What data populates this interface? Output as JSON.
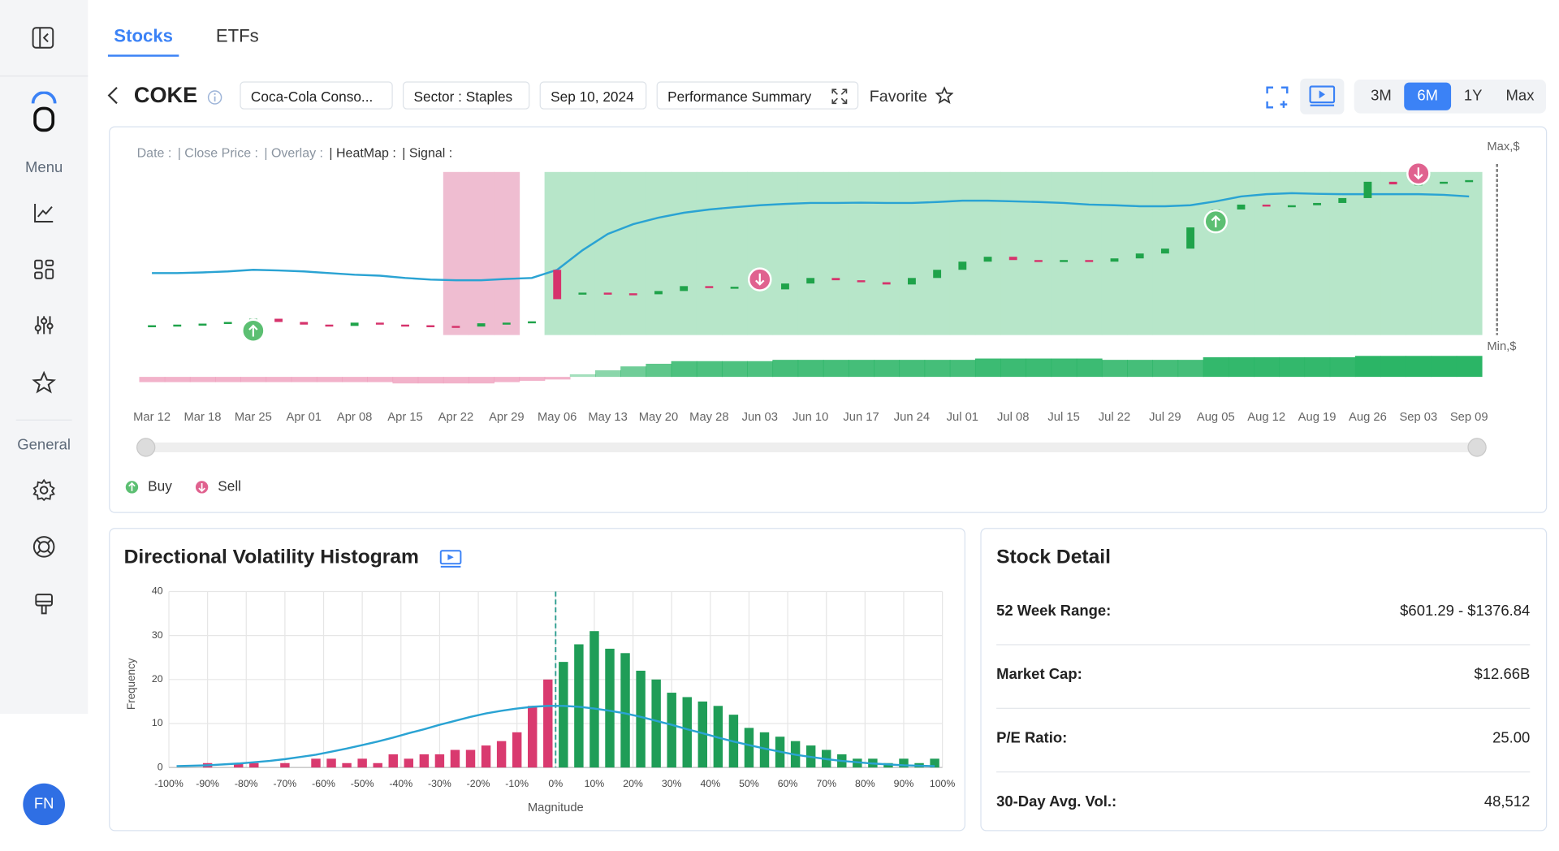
{
  "tabs": {
    "items": [
      "Stocks",
      "ETFs"
    ],
    "active": "Stocks"
  },
  "sidebar": {
    "sections": [
      "Menu",
      "General"
    ],
    "avatar": "FN"
  },
  "header": {
    "ticker": "COKE",
    "chips": [
      "Coca-Cola Conso...",
      "Sector : Staples",
      "Sep 10, 2024",
      "Performance Summary"
    ],
    "favorite": "Favorite",
    "ranges": [
      "3M",
      "6M",
      "1Y",
      "Max"
    ],
    "active_range": "6M"
  },
  "chart_data": [
    {
      "type": "candlestick",
      "info_labels": [
        "Date :",
        "| Close Price :",
        "| Overlay :",
        "| HeatMap :",
        "| Signal :"
      ],
      "categories": [
        "Mar 12",
        null,
        "Mar 18",
        null,
        "Mar 25",
        null,
        "Apr 01",
        null,
        "Apr 08",
        null,
        "Apr 15",
        null,
        "Apr 22",
        null,
        "Apr 29",
        null,
        "May 06",
        null,
        "May 13",
        null,
        "May 20",
        null,
        "May 28",
        null,
        "Jun 03",
        null,
        "Jun 10",
        null,
        "Jun 17",
        null,
        "Jun 24",
        null,
        "Jul 01",
        null,
        "Jul 08",
        null,
        "Jul 15",
        null,
        "Jul 22",
        null,
        "Jul 29",
        null,
        "Aug 05",
        null,
        "Aug 12",
        null,
        "Aug 19",
        null,
        "Aug 26",
        null,
        "Sep 03",
        null,
        "Sep 09"
      ],
      "open": [
        828,
        830,
        832,
        835,
        840,
        850,
        840,
        832,
        828,
        838,
        832,
        830,
        828,
        826,
        836,
        838,
        1000,
        925,
        930,
        928,
        925,
        935,
        950,
        945,
        948,
        940,
        958,
        975,
        968,
        962,
        955,
        975,
        1000,
        1025,
        1040,
        1030,
        1028,
        1030,
        1025,
        1035,
        1050,
        1065,
        1130,
        1185,
        1200,
        1195,
        1198,
        1205,
        1220,
        1270,
        1262,
        1265,
        1270
      ],
      "close": [
        830,
        832,
        835,
        840,
        850,
        840,
        832,
        828,
        838,
        832,
        830,
        828,
        826,
        836,
        838,
        842,
        910,
        930,
        928,
        925,
        935,
        950,
        945,
        948,
        940,
        958,
        975,
        968,
        962,
        955,
        975,
        1000,
        1025,
        1040,
        1030,
        1028,
        1030,
        1025,
        1035,
        1050,
        1065,
        1130,
        1185,
        1200,
        1195,
        1198,
        1205,
        1220,
        1270,
        1262,
        1265,
        1270,
        1275
      ],
      "up_color": "#1fa34a",
      "down_color": "#d6336c",
      "overlay": {
        "color": "#2aa3d3",
        "values": [
          990,
          990,
          992,
          995,
          1000,
          998,
          995,
          990,
          985,
          982,
          975,
          970,
          968,
          968,
          972,
          975,
          1000,
          1060,
          1110,
          1140,
          1160,
          1175,
          1185,
          1192,
          1198,
          1202,
          1205,
          1205,
          1206,
          1205,
          1205,
          1208,
          1212,
          1212,
          1210,
          1208,
          1205,
          1200,
          1198,
          1195,
          1195,
          1198,
          1210,
          1225,
          1232,
          1235,
          1233,
          1232,
          1232,
          1232,
          1232,
          1230,
          1225
        ]
      },
      "heatmap": {
        "positive_color": "#b7e6c9",
        "negative_color": "#efbdd1",
        "values": [
          0,
          0,
          0,
          0,
          0,
          0,
          0,
          0,
          0,
          0,
          0,
          0,
          -1,
          -1,
          -1,
          0,
          1,
          1,
          1,
          1,
          1,
          1,
          1,
          1,
          1,
          1,
          1,
          1,
          1,
          1,
          1,
          1,
          1,
          1,
          1,
          1,
          1,
          1,
          1,
          1,
          1,
          1,
          1,
          1,
          1,
          1,
          1,
          1,
          1,
          1,
          1,
          1,
          1
        ]
      },
      "momentum": {
        "positive_color": "#2bb566",
        "negative_color": "#ef9fbd",
        "values": [
          -4,
          -4,
          -4,
          -4,
          -4,
          -4,
          -4,
          -4,
          -4,
          -4,
          -5,
          -5,
          -5,
          -5,
          -4,
          -3,
          -2,
          2,
          5,
          8,
          10,
          12,
          12,
          12,
          12,
          13,
          13,
          13,
          13,
          13,
          13,
          13,
          13,
          14,
          14,
          14,
          14,
          14,
          13,
          13,
          13,
          13,
          15,
          15,
          15,
          15,
          15,
          15,
          16,
          16,
          16,
          16,
          16
        ],
        "lim": [
          -6,
          16
        ]
      },
      "ylim": [
        800,
        1300
      ],
      "y_max_label": "Max,$",
      "y_min_label": "Min,$",
      "legend": [
        {
          "name": "Buy",
          "color": "#5cbf72"
        },
        {
          "name": "Sell",
          "color": "#e0628f"
        }
      ],
      "signals": [
        {
          "date": "Mar 25",
          "type": "Buy"
        },
        {
          "date": "Jun 03",
          "type": "Sell"
        },
        {
          "date": "Aug 05",
          "type": "Buy"
        },
        {
          "date": "Sep 03",
          "type": "Sell"
        }
      ]
    },
    {
      "type": "histogram",
      "title": "Directional Volatility Histogram",
      "xlabel": "Magnitude",
      "ylabel": "Frequency",
      "bins": [
        -100,
        -96,
        -92,
        -88,
        -84,
        -80,
        -76,
        -72,
        -68,
        -64,
        -60,
        -56,
        -52,
        -48,
        -44,
        -40,
        -36,
        -32,
        -28,
        -24,
        -20,
        -16,
        -12,
        -8,
        -4,
        0,
        4,
        8,
        12,
        16,
        20,
        24,
        28,
        32,
        36,
        40,
        44,
        48,
        52,
        56,
        60,
        64,
        68,
        72,
        76,
        80,
        84,
        88,
        92,
        96,
        100
      ],
      "counts": [
        0,
        0,
        1,
        0,
        1,
        1,
        0,
        1,
        0,
        2,
        2,
        1,
        2,
        1,
        3,
        2,
        3,
        3,
        4,
        4,
        5,
        6,
        8,
        14,
        20,
        24,
        28,
        31,
        27,
        26,
        22,
        20,
        17,
        16,
        15,
        14,
        12,
        9,
        8,
        7,
        6,
        5,
        4,
        3,
        2,
        2,
        1,
        2,
        1,
        2
      ],
      "fit": {
        "color": "#2aa3d3",
        "values": [
          0.3,
          0.4,
          0.5,
          0.7,
          0.9,
          1.2,
          1.5,
          1.9,
          2.4,
          2.9,
          3.6,
          4.3,
          5.1,
          5.9,
          6.8,
          7.8,
          8.7,
          9.7,
          10.6,
          11.5,
          12.3,
          12.9,
          13.4,
          13.8,
          14.0,
          14.0,
          13.8,
          13.4,
          12.9,
          12.3,
          11.5,
          10.6,
          9.7,
          8.7,
          7.8,
          6.8,
          5.9,
          5.1,
          4.3,
          3.6,
          2.9,
          2.4,
          1.9,
          1.5,
          1.2,
          0.9,
          0.7,
          0.5,
          0.4,
          0.3
        ]
      },
      "neg_color": "#d93a6f",
      "pos_color": "#1f9d57",
      "divider": 0,
      "divider_color": "#2a9d8f",
      "xlim": [
        -100,
        100
      ],
      "ylim": [
        0,
        40
      ],
      "xticks": [
        {
          "value": -100,
          "label": "-100%"
        },
        {
          "value": -90,
          "label": "-90%"
        },
        {
          "value": -80,
          "label": "-80%"
        },
        {
          "value": -70,
          "label": "-70%"
        },
        {
          "value": -60,
          "label": "-60%"
        },
        {
          "value": -50,
          "label": "-50%"
        },
        {
          "value": -40,
          "label": "-40%"
        },
        {
          "value": -30,
          "label": "-30%"
        },
        {
          "value": -20,
          "label": "-20%"
        },
        {
          "value": -10,
          "label": "-10%"
        },
        {
          "value": 0,
          "label": "0%"
        },
        {
          "value": 10,
          "label": "10%"
        },
        {
          "value": 20,
          "label": "20%"
        },
        {
          "value": 30,
          "label": "30%"
        },
        {
          "value": 40,
          "label": "40%"
        },
        {
          "value": 50,
          "label": "50%"
        },
        {
          "value": 60,
          "label": "60%"
        },
        {
          "value": 70,
          "label": "70%"
        },
        {
          "value": 80,
          "label": "80%"
        },
        {
          "value": 90,
          "label": "90%"
        },
        {
          "value": 100,
          "label": "100%"
        }
      ],
      "yticks": [
        0,
        10,
        20,
        30,
        40
      ],
      "grid": true
    }
  ],
  "stock_detail": {
    "title": "Stock Detail",
    "rows": [
      {
        "label": "52 Week Range:",
        "value": "$601.29 - $1376.84"
      },
      {
        "label": "Market Cap:",
        "value": "$12.66B"
      },
      {
        "label": "P/E Ratio:",
        "value": "25.00"
      },
      {
        "label": "30-Day Avg. Vol.:",
        "value": "48,512"
      }
    ]
  }
}
